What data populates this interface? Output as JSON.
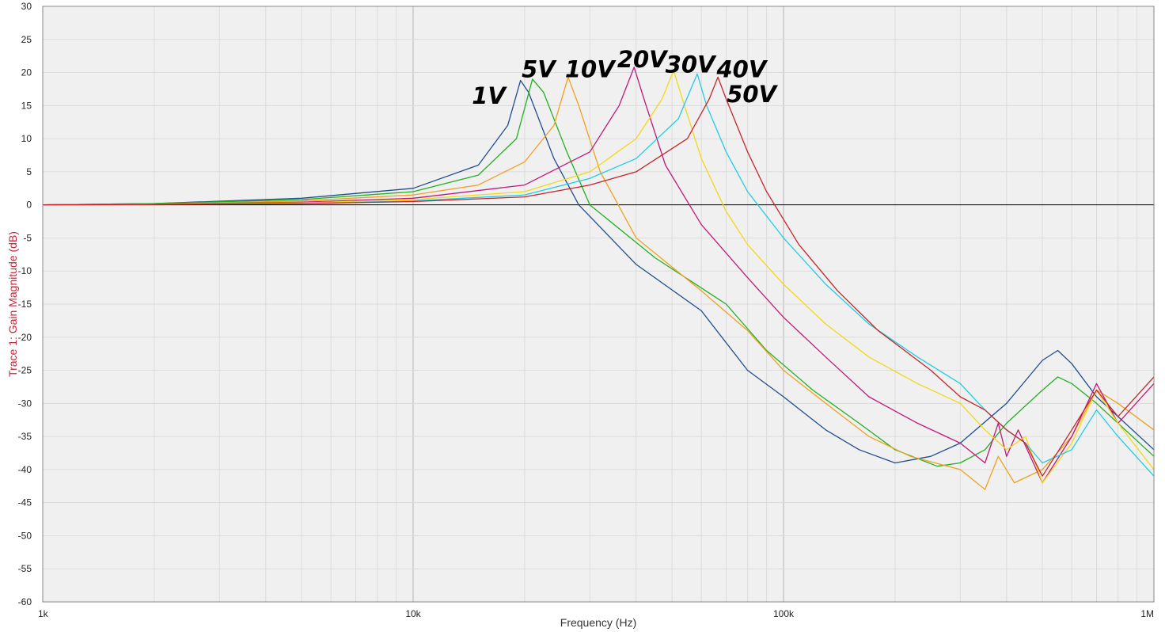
{
  "chart_data": {
    "type": "line",
    "title": "",
    "xlabel": "Frequency (Hz)",
    "ylabel": "Trace 1: Gain Magnitude (dB)",
    "x_scale": "log",
    "xlim": [
      1000,
      1000000
    ],
    "ylim": [
      -60,
      30
    ],
    "x_ticks": [
      {
        "value": 1000,
        "label": "1k"
      },
      {
        "value": 10000,
        "label": "10k"
      },
      {
        "value": 100000,
        "label": "100k"
      },
      {
        "value": 1000000,
        "label": "1M"
      }
    ],
    "y_ticks": [
      30,
      25,
      20,
      15,
      10,
      5,
      0,
      -5,
      -10,
      -15,
      -20,
      -25,
      -30,
      -35,
      -40,
      -45,
      -50,
      -55,
      -60
    ],
    "grid": true,
    "zero_line": true,
    "colors": {
      "ylabel": "#c0283c",
      "grid_major": "#b4b4b4",
      "grid_minor": "#dcdcdc",
      "background": "#f0f0f0"
    },
    "series": [
      {
        "name": "1V",
        "color": "#1f4e8c",
        "x": [
          1000,
          2000,
          5000,
          10000,
          15000,
          18000,
          19500,
          20500,
          24000,
          28000,
          40000,
          60000,
          80000,
          100000,
          130000,
          160000,
          200000,
          250000,
          300000,
          400000,
          500000,
          550000,
          600000,
          700000,
          800000,
          1000000
        ],
        "y": [
          0,
          0.2,
          1,
          2.5,
          6,
          12,
          18.8,
          17,
          7,
          0,
          -9,
          -16,
          -25,
          -29,
          -34,
          -37,
          -39,
          -38,
          -36,
          -30,
          -23.5,
          -22,
          -24,
          -29,
          -32,
          -37
        ]
      },
      {
        "name": "5V",
        "color": "#22b022",
        "x": [
          1000,
          2000,
          5000,
          10000,
          15000,
          19000,
          21000,
          22500,
          26000,
          30000,
          45000,
          70000,
          90000,
          120000,
          160000,
          200000,
          260000,
          300000,
          350000,
          400000,
          500000,
          550000,
          600000,
          700000,
          800000,
          1000000
        ],
        "y": [
          0,
          0.2,
          0.8,
          2,
          4.5,
          10,
          19,
          17,
          8,
          0,
          -8,
          -15,
          -22,
          -28,
          -33,
          -37,
          -39.5,
          -39,
          -37,
          -33,
          -28,
          -26,
          -27,
          -30,
          -33,
          -38
        ]
      },
      {
        "name": "10V",
        "color": "#f0a020",
        "x": [
          1000,
          2000,
          5000,
          10000,
          15000,
          20000,
          24000,
          26200,
          28000,
          32000,
          40000,
          60000,
          80000,
          100000,
          130000,
          170000,
          220000,
          300000,
          350000,
          380000,
          420000,
          500000,
          600000,
          700000,
          800000,
          1000000
        ],
        "y": [
          0,
          0.1,
          0.6,
          1.5,
          3,
          6.5,
          12,
          19.3,
          15,
          5,
          -5,
          -13,
          -19,
          -25,
          -30,
          -35,
          -38,
          -40,
          -43,
          -38,
          -42,
          -40,
          -35,
          -28,
          -30,
          -34
        ]
      },
      {
        "name": "20V",
        "color": "#c01a78",
        "x": [
          1000,
          2000,
          5000,
          10000,
          20000,
          30000,
          36000,
          39500,
          42000,
          48000,
          60000,
          80000,
          100000,
          130000,
          170000,
          230000,
          300000,
          350000,
          380000,
          400000,
          430000,
          500000,
          600000,
          700000,
          800000,
          1000000
        ],
        "y": [
          0,
          0.1,
          0.4,
          1,
          3,
          8,
          15,
          20.8,
          16,
          6,
          -3,
          -11,
          -17,
          -23,
          -29,
          -33,
          -36,
          -39,
          -33,
          -38,
          -34,
          -42,
          -35,
          -27,
          -33,
          -27
        ]
      },
      {
        "name": "30V",
        "color": "#f2d816",
        "x": [
          1000,
          2000,
          5000,
          10000,
          20000,
          30000,
          40000,
          47000,
          50500,
          54000,
          60000,
          70000,
          80000,
          100000,
          130000,
          170000,
          230000,
          300000,
          350000,
          400000,
          450000,
          500000,
          600000,
          700000,
          800000,
          1000000
        ],
        "y": [
          0,
          0.1,
          0.3,
          0.8,
          2,
          5,
          10,
          16,
          20.3,
          15,
          7,
          -1,
          -6,
          -12,
          -18,
          -23,
          -27,
          -30,
          -34,
          -37,
          -35,
          -42,
          -36,
          -28,
          -33,
          -40
        ]
      },
      {
        "name": "40V",
        "color": "#1ecde4",
        "x": [
          1000,
          2000,
          5000,
          10000,
          20000,
          30000,
          40000,
          52000,
          58500,
          62000,
          70000,
          80000,
          100000,
          130000,
          170000,
          230000,
          300000,
          350000,
          400000,
          450000,
          500000,
          600000,
          700000,
          800000,
          1000000
        ],
        "y": [
          0,
          0.1,
          0.2,
          0.6,
          1.5,
          4,
          7,
          13,
          19.8,
          15,
          8,
          2,
          -5,
          -12,
          -18,
          -23,
          -27,
          -31,
          -34,
          -36,
          -39,
          -37,
          -31,
          -35,
          -41
        ]
      },
      {
        "name": "50V",
        "color": "#c4262a",
        "x": [
          1000,
          2000,
          5000,
          10000,
          20000,
          30000,
          40000,
          55000,
          63000,
          66500,
          70000,
          80000,
          90000,
          110000,
          140000,
          180000,
          250000,
          300000,
          350000,
          400000,
          450000,
          500000,
          600000,
          700000,
          800000,
          1000000
        ],
        "y": [
          0,
          0.05,
          0.2,
          0.5,
          1.2,
          3,
          5,
          10,
          16,
          19.3,
          16,
          8,
          2,
          -6,
          -13,
          -19,
          -25,
          -29,
          -31,
          -34,
          -36,
          -41,
          -34,
          -28,
          -32,
          -26
        ]
      }
    ],
    "annotations": [
      {
        "text": "1V",
        "x": 16000,
        "y": 16.5,
        "color": "#000000"
      },
      {
        "text": "5V",
        "x": 21800,
        "y": 20.5,
        "color": "#000000"
      },
      {
        "text": "10V",
        "x": 30000,
        "y": 20.5,
        "color": "#000000"
      },
      {
        "text": "20V",
        "x": 41500,
        "y": 22,
        "color": "#000000"
      },
      {
        "text": "30V",
        "x": 56000,
        "y": 21.2,
        "color": "#000000"
      },
      {
        "text": "40V",
        "x": 77000,
        "y": 20.5,
        "color": "#000000"
      },
      {
        "text": "50V",
        "x": 82000,
        "y": 16.7,
        "color": "#000000"
      }
    ]
  }
}
